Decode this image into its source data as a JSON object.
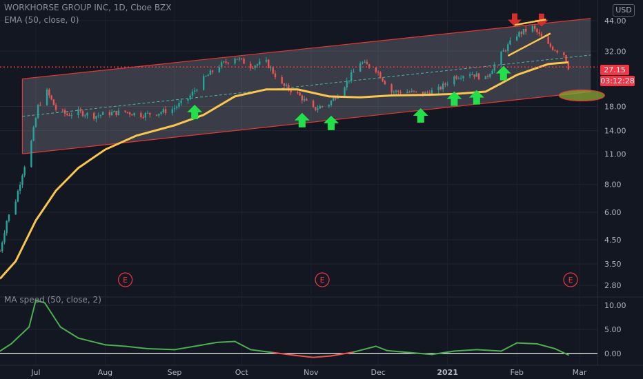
{
  "header": {
    "symbol_line": "WORKHORSE GROUP INC, 1D, Cboe BZX",
    "ema_line": "EMA (50, close, 0)",
    "currency_button": "USD",
    "oscillator_line": "MA speed (50, close, 2)"
  },
  "price_badges": {
    "last_price": "27.15",
    "countdown": "03:12:28"
  },
  "earnings_marker": "E",
  "colors": {
    "background": "#131722",
    "up_candle": "#26a69a",
    "down_candle": "#ef5350",
    "ema": "#f9c74f",
    "channel_line": "#e53935",
    "arrow": "#22e04a",
    "last_price": "#f23645",
    "osc_positive": "#4caf50",
    "osc_negative": "#ef5350"
  },
  "icons": [
    "up-arrow-icon",
    "down-arrow-icon",
    "earnings-icon"
  ],
  "chart_data": [
    {
      "type": "candlestick",
      "title": "WORKHORSE GROUP INC, 1D, Cboe BZX",
      "y_scale": "log",
      "ylim": [
        2.5,
        50
      ],
      "y_ticks": [
        "44.00",
        "32.00",
        "18.00",
        "14.00",
        "11.00",
        "8.00",
        "6.00",
        "4.50",
        "3.50",
        "2.80"
      ],
      "x_ticks": [
        "Jul",
        "Aug",
        "Sep",
        "Oct",
        "Nov",
        "Dec",
        "2021",
        "Feb",
        "Mar"
      ],
      "x_range": [
        "2020-06-15",
        "2021-03-09"
      ],
      "last_price": 27.15,
      "close_series": {
        "name": "Close",
        "dates": [
          "2020-06-15",
          "2020-06-18",
          "2020-06-22",
          "2020-06-25",
          "2020-06-29",
          "2020-07-02",
          "2020-07-06",
          "2020-07-10",
          "2020-07-15",
          "2020-07-20",
          "2020-07-27",
          "2020-08-03",
          "2020-08-10",
          "2020-08-17",
          "2020-08-24",
          "2020-08-31",
          "2020-09-07",
          "2020-09-14",
          "2020-09-21",
          "2020-09-28",
          "2020-10-05",
          "2020-10-12",
          "2020-10-19",
          "2020-10-26",
          "2020-11-02",
          "2020-11-09",
          "2020-11-16",
          "2020-11-23",
          "2020-11-30",
          "2020-12-07",
          "2020-12-14",
          "2020-12-21",
          "2020-12-28",
          "2021-01-04",
          "2021-01-11",
          "2021-01-18",
          "2021-01-25",
          "2021-02-01",
          "2021-02-08",
          "2021-02-15",
          "2021-02-22",
          "2021-02-24"
        ],
        "values": [
          4.0,
          5.5,
          6.8,
          9.0,
          12.5,
          18.0,
          21.0,
          17.5,
          16.5,
          17.0,
          16.3,
          16.8,
          17.0,
          16.5,
          16.8,
          17.5,
          19.5,
          24.0,
          27.5,
          30.0,
          27.5,
          28.5,
          22.5,
          20.5,
          17.5,
          18.5,
          22.5,
          28.5,
          26.5,
          21.0,
          21.0,
          20.5,
          21.5,
          24.5,
          25.5,
          24.0,
          31.0,
          38.0,
          41.0,
          34.0,
          31.0,
          27.15
        ]
      },
      "ema": {
        "name": "EMA (50, close, 0)",
        "dates": [
          "2020-06-15",
          "2020-06-22",
          "2020-07-01",
          "2020-07-10",
          "2020-07-20",
          "2020-08-01",
          "2020-08-15",
          "2020-09-01",
          "2020-09-14",
          "2020-09-28",
          "2020-10-12",
          "2020-10-26",
          "2020-11-09",
          "2020-11-23",
          "2020-12-07",
          "2020-12-21",
          "2021-01-04",
          "2021-01-18",
          "2021-02-01",
          "2021-02-15",
          "2021-02-24"
        ],
        "values": [
          3.0,
          3.6,
          5.5,
          7.5,
          9.5,
          11.5,
          13.3,
          14.8,
          16.5,
          20.0,
          21.5,
          21.5,
          20.0,
          19.8,
          20.2,
          20.3,
          20.5,
          21.0,
          25.0,
          28.0,
          28.5
        ]
      },
      "channel": {
        "upper": {
          "start": [
            "2020-06-25",
            24.0
          ],
          "end": [
            "2021-03-06",
            45.0
          ]
        },
        "lower": {
          "start": [
            "2020-06-25",
            11.0
          ],
          "end": [
            "2021-03-06",
            21.0
          ]
        }
      },
      "earnings_dates": [
        "2020-08-10",
        "2020-11-06",
        "2021-02-25"
      ],
      "annotations": {
        "up_arrows": [
          "2020-09-10",
          "2020-10-28",
          "2020-11-10",
          "2020-12-20",
          "2021-01-04",
          "2021-01-14",
          "2021-01-26"
        ],
        "down_arrows": [
          "2021-01-31",
          "2021-02-12"
        ]
      }
    },
    {
      "type": "line",
      "title": "MA speed (50, close, 2)",
      "ylim": [
        -1,
        11
      ],
      "y_ticks": [
        "10.00",
        "5.00",
        "0.00"
      ],
      "series": [
        {
          "name": "MA speed (50, close, 2)",
          "dates": [
            "2020-06-15",
            "2020-06-20",
            "2020-06-28",
            "2020-07-01",
            "2020-07-05",
            "2020-07-12",
            "2020-07-20",
            "2020-08-01",
            "2020-08-10",
            "2020-08-20",
            "2020-09-01",
            "2020-09-10",
            "2020-09-20",
            "2020-09-28",
            "2020-10-05",
            "2020-10-15",
            "2020-10-25",
            "2020-11-02",
            "2020-11-10",
            "2020-11-20",
            "2020-11-30",
            "2020-12-05",
            "2020-12-15",
            "2020-12-25",
            "2021-01-04",
            "2021-01-14",
            "2021-01-25",
            "2021-02-01",
            "2021-02-10",
            "2021-02-18",
            "2021-02-24"
          ],
          "values": [
            0.5,
            2.0,
            5.5,
            11.0,
            10.5,
            5.5,
            3.2,
            1.8,
            1.5,
            1.0,
            0.8,
            1.5,
            2.3,
            2.5,
            0.8,
            0.2,
            -0.4,
            -0.8,
            -0.5,
            0.3,
            1.5,
            0.6,
            0.2,
            -0.2,
            0.5,
            0.8,
            0.5,
            2.2,
            2.0,
            1.0,
            -0.3
          ]
        }
      ]
    }
  ]
}
